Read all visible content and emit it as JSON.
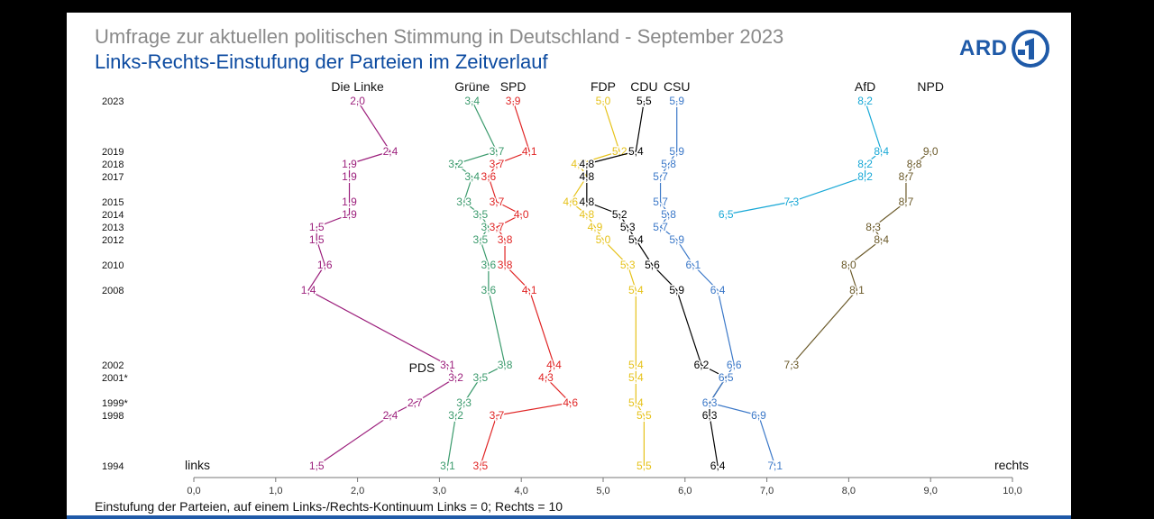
{
  "header": {
    "title": "Umfrage zur aktuellen politischen Stimmung in Deutschland - September 2023",
    "subtitle": "Links-Rechts-Einstufung der Parteien im Zeitverlauf"
  },
  "logo": {
    "wordmark": "ARD",
    "icon": "ard-one-logo-icon"
  },
  "footnote": "Einstufung der Parteien, auf einem Links-/Rechts-Kontinuum Links = 0; Rechts = 10",
  "colors": {
    "linke": "#9c1f7c",
    "gruene": "#3a9a6c",
    "spd": "#e02424",
    "fdp": "#e6c21a",
    "cdu": "#000000",
    "csu": "#3b78c8",
    "afd": "#18a8d6",
    "npd": "#6b5a2a",
    "title_gray": "#8a8a8a",
    "subtitle_blue": "#0b4aa0"
  },
  "chart_data": {
    "type": "line",
    "orientation": "horizontal",
    "xlim": [
      0,
      10
    ],
    "x_ticks": [
      "0,0",
      "1,0",
      "2,0",
      "3,0",
      "4,0",
      "5,0",
      "6,0",
      "7,0",
      "8,0",
      "9,0",
      "10,0"
    ],
    "axis_left_label": "links",
    "axis_right_label": "rechts",
    "pds_label": "PDS",
    "year_labels": [
      "2023",
      "2019",
      "2018",
      "2017",
      "2015",
      "2014",
      "2013",
      "2012",
      "2010",
      "2008",
      "2002",
      "2001*",
      "1999*",
      "1998",
      "1994"
    ],
    "series": [
      {
        "name": "Die Linke",
        "color_key": "linke",
        "values": [
          2.0,
          2.4,
          1.9,
          1.9,
          1.9,
          1.9,
          1.5,
          1.5,
          1.6,
          1.4,
          3.1,
          3.2,
          2.7,
          2.4,
          1.5
        ],
        "labels": [
          "2,0",
          "2,4",
          "1,9",
          "1,9",
          "1,9",
          "1,9",
          "1,5",
          "1,5",
          "1,6",
          "1,4",
          "3,1",
          "3,2",
          "2,7",
          "2,4",
          "1,5"
        ]
      },
      {
        "name": "Grüne",
        "color_key": "gruene",
        "values": [
          3.4,
          3.7,
          3.2,
          3.4,
          3.3,
          3.5,
          3.6,
          3.5,
          3.6,
          3.6,
          3.8,
          3.5,
          3.3,
          3.2,
          3.1
        ],
        "labels": [
          "3,4",
          "3,7",
          "3,2",
          "3,4",
          "3,3",
          "3,5",
          "3,6",
          "3,5",
          "3,6",
          "3,6",
          "3,8",
          "3,5",
          "3,3",
          "3,2",
          "3,1"
        ]
      },
      {
        "name": "SPD",
        "color_key": "spd",
        "values": [
          3.9,
          4.1,
          3.7,
          3.6,
          3.7,
          4.0,
          3.7,
          3.8,
          3.8,
          4.1,
          4.4,
          4.3,
          4.6,
          3.7,
          3.5
        ],
        "labels": [
          "3,9",
          "4,1",
          "3,7",
          "3,6",
          "3,7",
          "4,0",
          "3,7",
          "3,8",
          "3,8",
          "4,1",
          "4,4",
          "4,3",
          "4,6",
          "3,7",
          "3,5"
        ]
      },
      {
        "name": "FDP",
        "color_key": "fdp",
        "values": [
          5.0,
          5.2,
          4.7,
          4.8,
          4.6,
          4.8,
          4.9,
          5.0,
          5.3,
          5.4,
          5.4,
          5.4,
          5.4,
          5.5,
          5.5
        ],
        "labels": [
          "5,0",
          "5,2",
          "4,7",
          "4,8",
          "4,6",
          "4,8",
          "4,9",
          "5,0",
          "5,3",
          "5,4",
          "5,4",
          "5,4",
          "5,4",
          "5,5",
          "5,5"
        ]
      },
      {
        "name": "CDU",
        "color_key": "cdu",
        "values": [
          5.5,
          5.4,
          4.8,
          4.8,
          4.8,
          5.2,
          5.3,
          5.4,
          5.6,
          5.9,
          6.2,
          6.5,
          6.3,
          6.3,
          6.4
        ],
        "labels": [
          "5,5",
          "5,4",
          "4,8",
          "4,8",
          "4,8",
          "5,2",
          "5,3",
          "5,4",
          "5,6",
          "5,9",
          "6,2",
          "6,5",
          "6,3",
          "6,3",
          "6,4"
        ]
      },
      {
        "name": "CSU",
        "color_key": "csu",
        "values": [
          5.9,
          5.9,
          5.8,
          5.7,
          5.7,
          5.8,
          5.7,
          5.9,
          6.1,
          6.4,
          6.6,
          6.5,
          6.3,
          6.9,
          7.1
        ],
        "labels": [
          "5,9",
          "5,9",
          "5,8",
          "5,7",
          "5,7",
          "5,8",
          "5,7",
          "5,9",
          "6,1",
          "6,4",
          "6,6",
          "6,5",
          "6,3",
          "6,9",
          "7,1"
        ]
      },
      {
        "name": "AfD",
        "color_key": "afd",
        "values": [
          8.2,
          8.4,
          8.2,
          8.2,
          7.3,
          6.5,
          null,
          null,
          null,
          null,
          null,
          null,
          null,
          null,
          null
        ],
        "labels": [
          "8,2",
          "8,4",
          "8,2",
          "8,2",
          "7,3",
          "6,5",
          "",
          "",
          "",
          "",
          "",
          "",
          "",
          "",
          ""
        ]
      },
      {
        "name": "NPD",
        "color_key": "npd",
        "values": [
          null,
          9.0,
          8.8,
          8.7,
          8.7,
          null,
          8.3,
          8.4,
          8.0,
          8.1,
          7.3,
          null,
          null,
          null,
          null
        ],
        "labels": [
          "",
          "9,0",
          "8,8",
          "8,7",
          "8,7",
          "",
          "8,3",
          "8,4",
          "8,0",
          "8,1",
          "7,3",
          "",
          "",
          "",
          ""
        ]
      }
    ]
  }
}
